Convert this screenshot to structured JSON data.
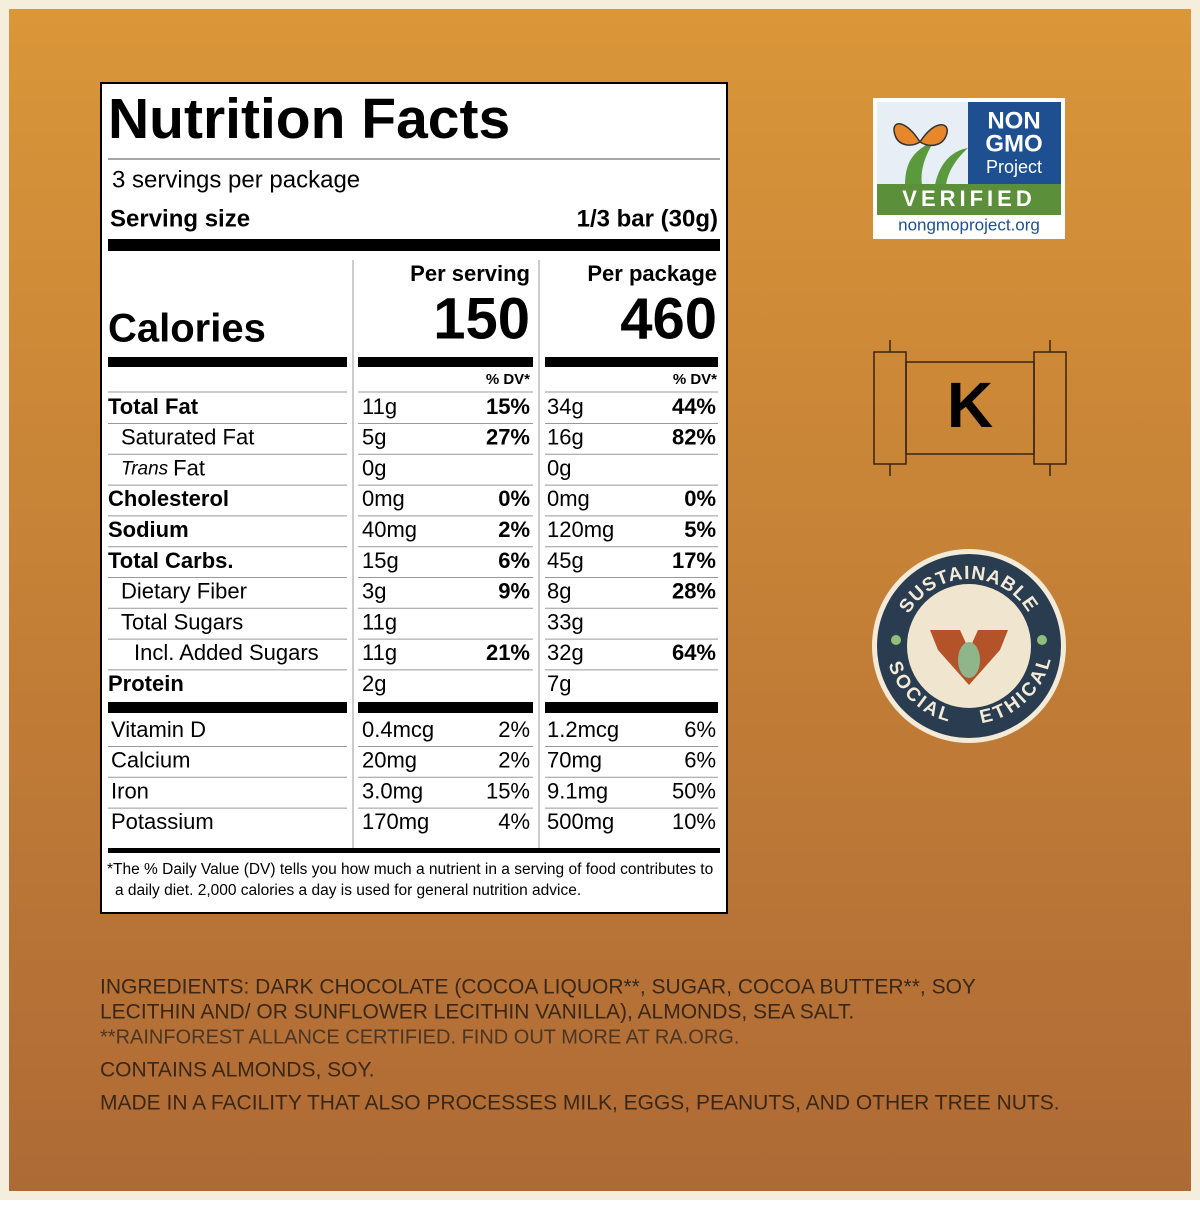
{
  "label": {
    "title": "Nutrition Facts",
    "servings": "3 servings per package",
    "serving_size_label": "Serving size",
    "serving_size": "1/3 bar (30g)",
    "calories_label": "Calories",
    "columns": [
      {
        "header": "Per serving",
        "calories": "150"
      },
      {
        "header": "Per package",
        "calories": "460"
      }
    ],
    "dv_header": "% DV*",
    "nutrients": [
      {
        "name": "Total Fat",
        "bold": true,
        "indent": 0,
        "serving": [
          "11g",
          "15%"
        ],
        "package": [
          "34g",
          "44%"
        ]
      },
      {
        "name": "Saturated Fat",
        "bold": false,
        "indent": 1,
        "serving": [
          "5g",
          "27%"
        ],
        "package": [
          "16g",
          "82%"
        ]
      },
      {
        "name_italic": "Trans",
        "name": "Fat",
        "bold": false,
        "indent": 1,
        "serving": [
          "0g"
        ],
        "package": [
          "0g"
        ]
      },
      {
        "name": "Cholesterol",
        "bold": true,
        "indent": 0,
        "serving": [
          "0mg",
          "0%"
        ],
        "package": [
          "0mg",
          "0%"
        ]
      },
      {
        "name": "Sodium",
        "bold": true,
        "indent": 0,
        "serving": [
          "40mg",
          "2%"
        ],
        "package": [
          "120mg",
          "5%"
        ]
      },
      {
        "name": "Total Carbs.",
        "bold": true,
        "indent": 0,
        "serving": [
          "15g",
          "6%"
        ],
        "package": [
          "45g",
          "17%"
        ]
      },
      {
        "name": "Dietary Fiber",
        "bold": false,
        "indent": 1,
        "serving": [
          "3g",
          "9%"
        ],
        "package": [
          "8g",
          "28%"
        ]
      },
      {
        "name": "Total Sugars",
        "bold": false,
        "indent": 1,
        "serving": [
          "11g"
        ],
        "package": [
          "33g"
        ]
      },
      {
        "name": "Incl. Added Sugars",
        "bold": false,
        "indent": 2,
        "serving": [
          "11g",
          "21%"
        ],
        "package": [
          "32g",
          "64%"
        ]
      },
      {
        "name": "Protein",
        "bold": true,
        "indent": 0,
        "serving": [
          "2g"
        ],
        "package": [
          "7g"
        ]
      }
    ],
    "vitamins": [
      {
        "name": "Vitamin D",
        "serving": [
          "0.4mcg",
          "2%"
        ],
        "package": [
          "1.2mcg",
          "6%"
        ]
      },
      {
        "name": "Calcium",
        "serving": [
          "20mg",
          "2%"
        ],
        "package": [
          "70mg",
          "6%"
        ]
      },
      {
        "name": "Iron",
        "serving": [
          "3.0mg",
          "15%"
        ],
        "package": [
          "9.1mg",
          "50%"
        ]
      },
      {
        "name": "Potassium",
        "serving": [
          "170mg",
          "4%"
        ],
        "package": [
          "500mg",
          "10%"
        ]
      }
    ],
    "footnote": [
      "*The % Daily Value (DV) tells you how much a nutrient in a serving of food contributes to",
      "a daily diet. 2,000 calories a day is used for general nutrition advice."
    ]
  },
  "badges": {
    "non_gmo": {
      "line1": "NON",
      "line2": "GMO",
      "line3": "Project",
      "verified": "VERIFIED",
      "url": "nongmoproject.org"
    },
    "kosher": "K",
    "sustainable": {
      "top": "SUSTAINABLE",
      "left": "SOCIAL",
      "right": "ETHICAL"
    }
  },
  "ingredients": [
    "INGREDIENTS: DARK CHOCOLATE (COCOA LIQUOR**, SUGAR, COCOA BUTTER**, SOY",
    "LECITHIN AND/ OR SUNFLOWER LECITHIN VANILLA), ALMONDS, SEA SALT.",
    "**RAINFOREST ALLANCE CERTIFIED. FIND OUT MORE AT RA.ORG.",
    "CONTAINS ALMONDS, SOY.",
    "MADE IN A FACILITY THAT ALSO PROCESSES MILK, EGGS, PEANUTS, AND OTHER TREE NUTS."
  ]
}
